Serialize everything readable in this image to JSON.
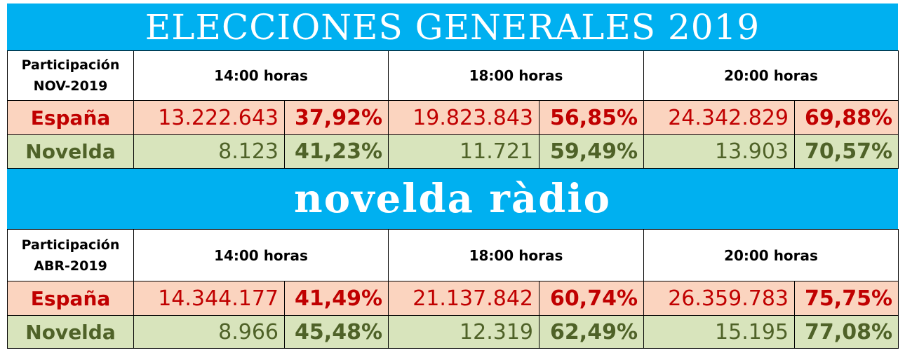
{
  "title": "ELECCIONES GENERALES 2019",
  "subtitle": "novelda ràdio",
  "tables": [
    {
      "header": {
        "label": [
          "Participación",
          "NOV-2019"
        ],
        "columns": [
          "14:00 horas",
          "18:00 horas",
          "20:00 horas"
        ]
      },
      "rows": [
        {
          "label": "España",
          "cells": [
            "13.222.643",
            "37,92%",
            "19.823.843",
            "56,85%",
            "24.342.829",
            "69,88%"
          ]
        },
        {
          "label": "Novelda",
          "cells": [
            "8.123",
            "41,23%",
            "11.721",
            "59,49%",
            "13.903",
            "70,57%"
          ]
        }
      ]
    },
    {
      "header": {
        "label": [
          "Participación",
          "ABR-2019"
        ],
        "columns": [
          "14:00 horas",
          "18:00 horas",
          "20:00 horas"
        ]
      },
      "rows": [
        {
          "label": "España",
          "cells": [
            "14.344.177",
            "41,49%",
            "21.137.842",
            "60,74%",
            "26.359.783",
            "75,75%"
          ]
        },
        {
          "label": "Novelda",
          "cells": [
            "8.966",
            "45,48%",
            "12.319",
            "62,49%",
            "15.195",
            "77,08%"
          ]
        }
      ]
    }
  ]
}
